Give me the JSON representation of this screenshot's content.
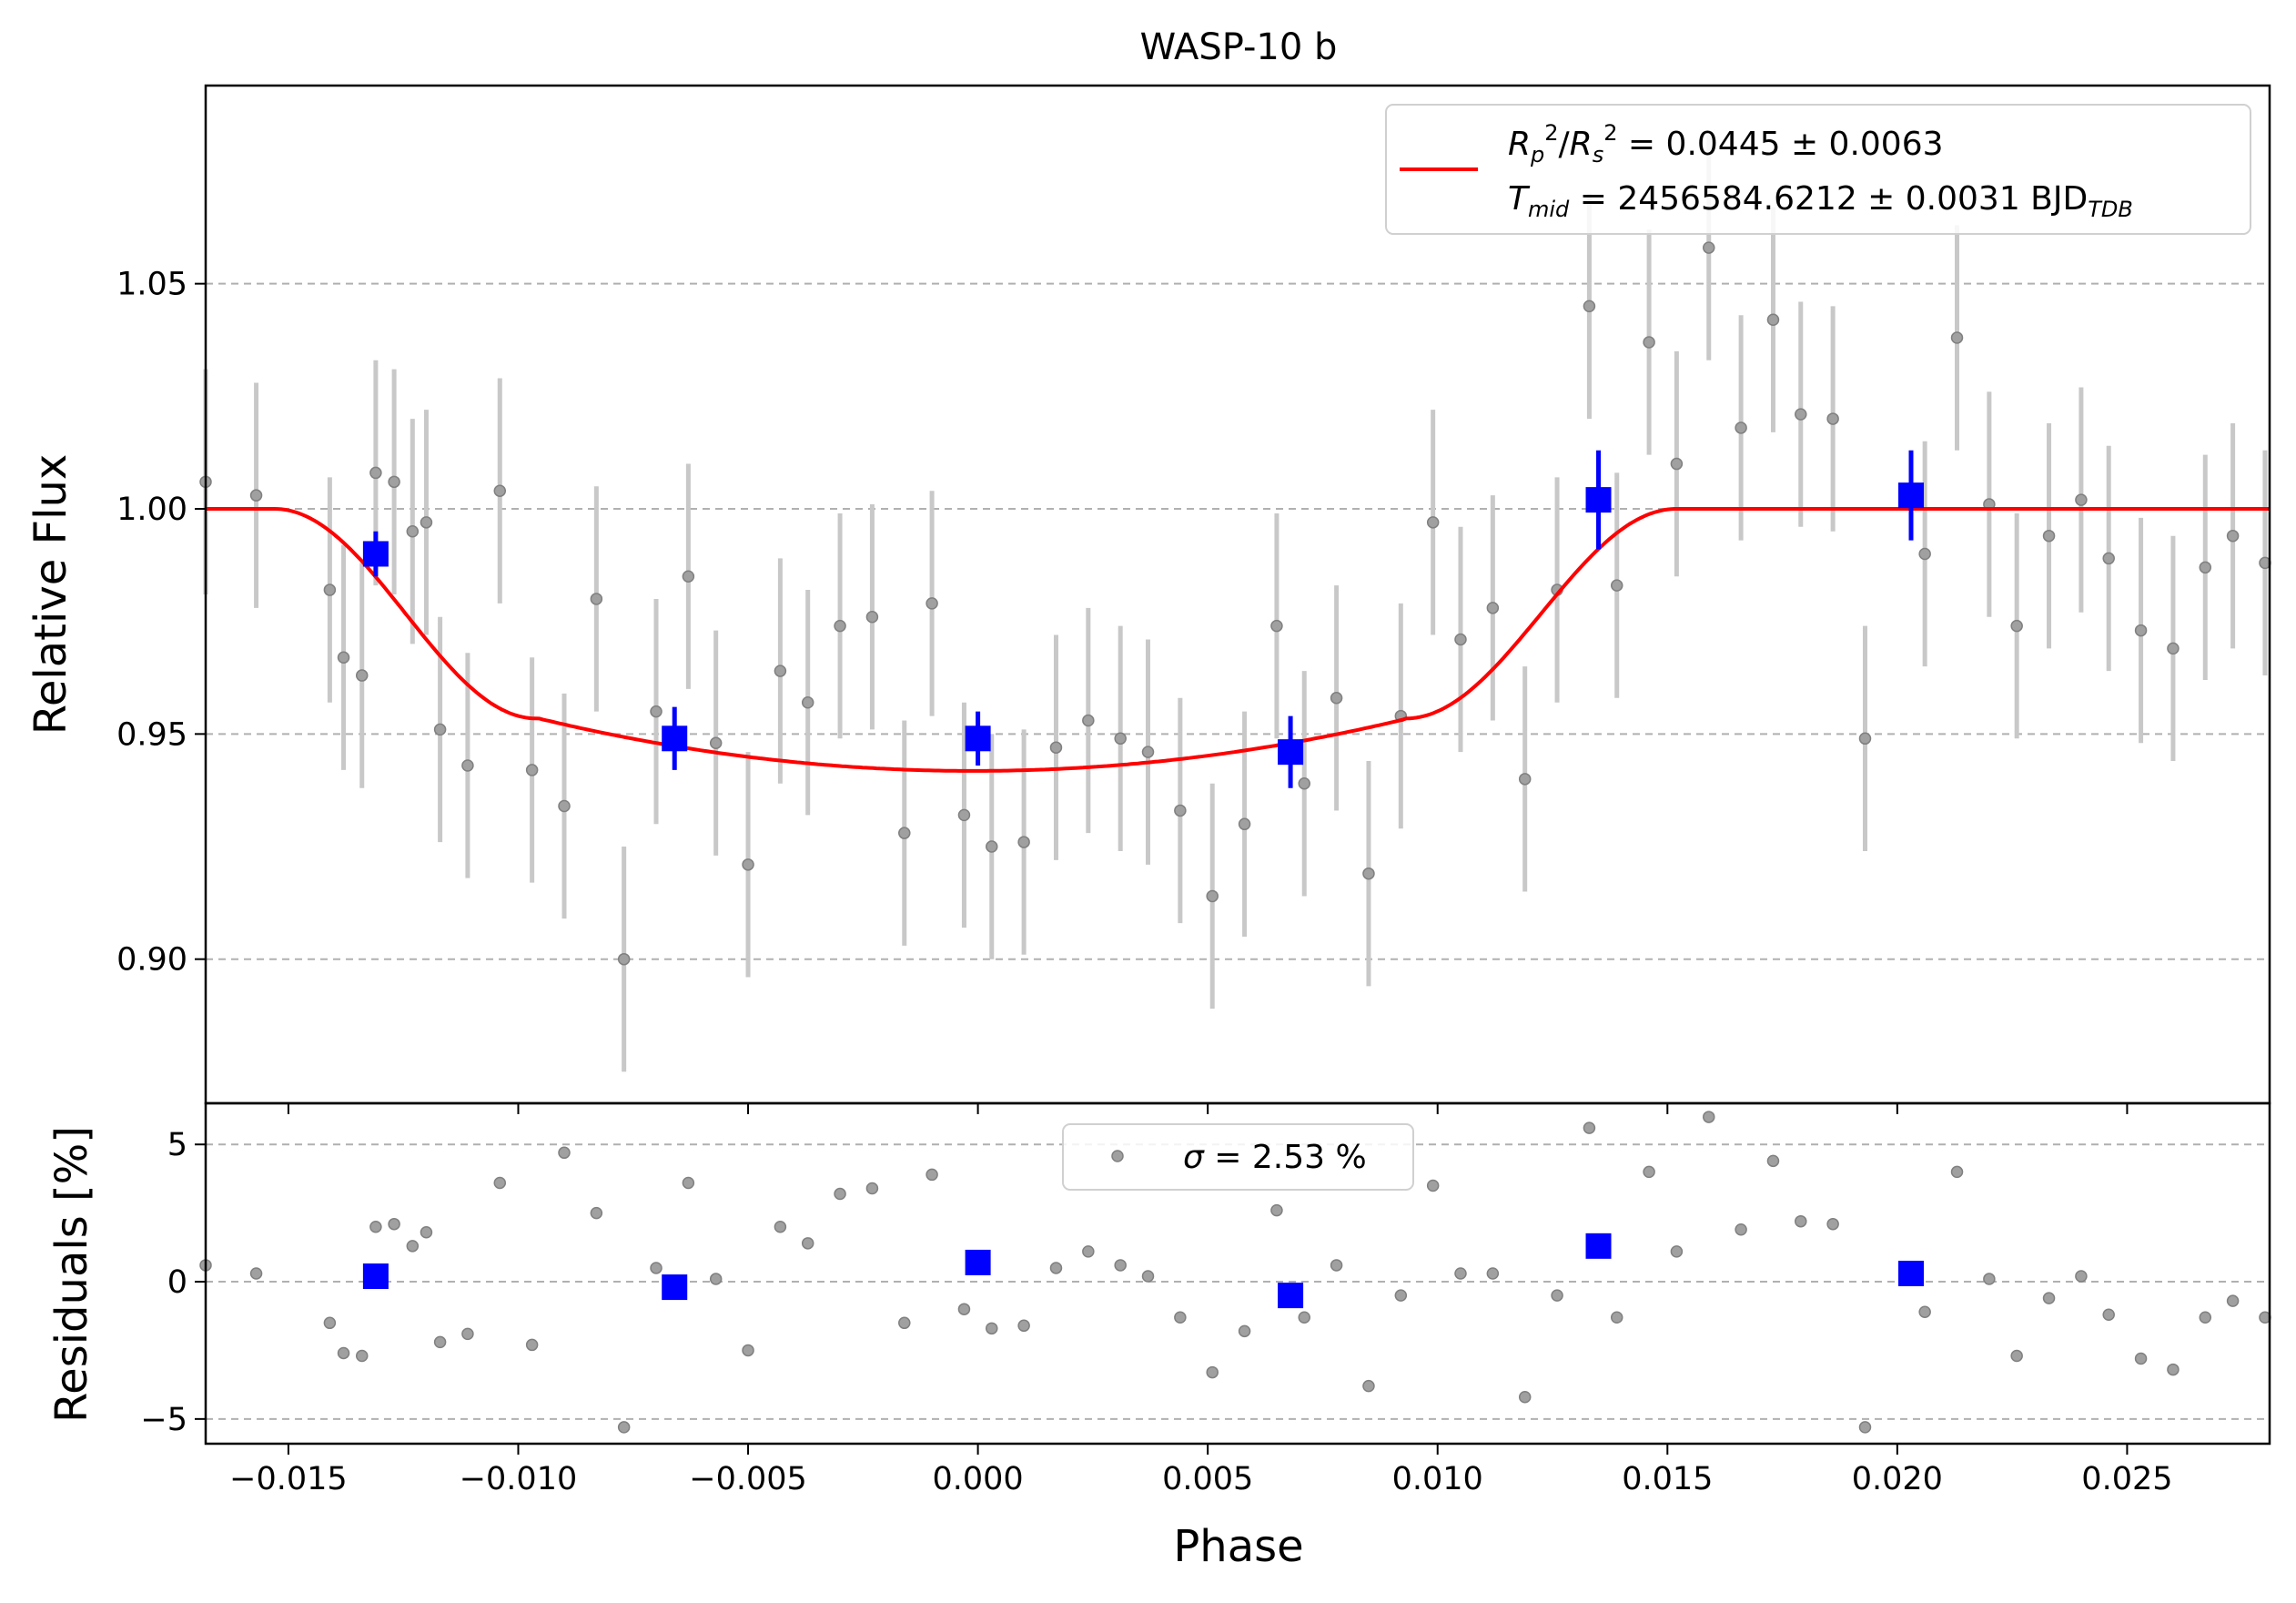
{
  "chart_data": [
    {
      "type": "scatter",
      "panel": "top",
      "title": "WASP-10 b",
      "xlabel": "Phase",
      "ylabel": "Relative Flux",
      "xlim": [
        -0.0168,
        0.0281
      ],
      "ylim": [
        0.868,
        1.094
      ],
      "x_ticks": [
        -0.015,
        -0.01,
        -0.005,
        0.0,
        0.005,
        0.01,
        0.015,
        0.02,
        0.025
      ],
      "x_tick_labels": [
        "−0.015",
        "−0.010",
        "−0.005",
        "0.000",
        "0.005",
        "0.010",
        "0.015",
        "0.020",
        "0.025"
      ],
      "y_ticks": [
        0.9,
        0.95,
        1.0,
        1.05
      ],
      "y_tick_labels": [
        "0.90",
        "0.95",
        "1.00",
        "1.05"
      ],
      "grid": "horizontal dashed",
      "legend": {
        "placement": "top-right",
        "line1": "R_p^2/R_s^2 = 0.0445 ± 0.0063",
        "line2": "T_mid = 2456584.6212 ± 0.0031 BJD_TDB"
      },
      "colors": {
        "data": "#808080",
        "errorbar": "#c8c8c8",
        "binned": "#0000ff",
        "model": "#ff0000"
      },
      "model": {
        "depth": 0.0582,
        "ingress_start": -0.0153,
        "ingress_end": -0.0096,
        "egress_start": 0.0093,
        "egress_end": 0.0152,
        "center": -0.0001
      },
      "raw_points": {
        "x": [
          -0.0168,
          -0.0157,
          -0.0141,
          -0.0138,
          -0.0134,
          -0.0131,
          -0.0127,
          -0.0123,
          -0.012,
          -0.0117,
          -0.0111,
          -0.0104,
          -0.0097,
          -0.009,
          -0.0083,
          -0.0077,
          -0.007,
          -0.0063,
          -0.0057,
          -0.005,
          -0.0043,
          -0.0037,
          -0.003,
          -0.0023,
          -0.0016,
          -0.001,
          -0.0003,
          0.0003,
          0.001,
          0.0017,
          0.0024,
          0.0031,
          0.0037,
          0.0044,
          0.0051,
          0.0058,
          0.0065,
          0.0071,
          0.0078,
          0.0085,
          0.0092,
          0.0099,
          0.0105,
          0.0112,
          0.0119,
          0.0126,
          0.0133,
          0.0139,
          0.0146,
          0.0152,
          0.0159,
          0.0166,
          0.0173,
          0.0179,
          0.0186,
          0.0193,
          0.0206,
          0.0213,
          0.022,
          0.0226,
          0.0233,
          0.024,
          0.0246,
          0.0253,
          0.026,
          0.0267,
          0.0273,
          0.028
        ],
        "y": [
          1.006,
          1.003,
          0.982,
          0.967,
          0.963,
          1.008,
          1.006,
          0.995,
          0.997,
          0.951,
          0.943,
          1.004,
          0.942,
          0.934,
          0.98,
          0.9,
          0.955,
          0.985,
          0.948,
          0.921,
          0.964,
          0.957,
          0.974,
          0.976,
          0.928,
          0.979,
          0.932,
          0.925,
          0.926,
          0.947,
          0.953,
          0.949,
          0.946,
          0.933,
          0.914,
          0.93,
          0.974,
          0.939,
          0.958,
          0.919,
          0.954,
          0.997,
          0.971,
          0.978,
          0.94,
          0.982,
          1.045,
          0.983,
          1.037,
          1.01,
          1.058,
          1.018,
          1.042,
          1.021,
          1.02,
          0.949,
          0.99,
          1.038,
          1.001,
          0.974,
          0.994,
          1.002,
          0.989,
          0.973,
          0.969,
          0.987,
          0.994,
          0.988
        ],
        "yerr": 0.025
      },
      "binned_points": {
        "x": [
          -0.0131,
          -0.0066,
          0.0,
          0.0068,
          0.0135,
          0.0203
        ],
        "y": [
          0.99,
          0.949,
          0.949,
          0.946,
          1.002,
          1.003
        ],
        "yerr": [
          0.005,
          0.007,
          0.006,
          0.008,
          0.011,
          0.01
        ]
      }
    },
    {
      "type": "scatter",
      "panel": "bottom",
      "xlabel": "Phase",
      "ylabel": "Residuals [%]",
      "xlim": [
        -0.0168,
        0.0281
      ],
      "ylim": [
        -5.9,
        6.5
      ],
      "y_ticks": [
        -5,
        0,
        5
      ],
      "y_tick_labels": [
        "−5",
        "0",
        "5"
      ],
      "grid": "horizontal dashed",
      "legend": {
        "placement": "top-center",
        "text": "σ = 2.53 %"
      },
      "raw_residuals": {
        "x": [
          -0.0168,
          -0.0157,
          -0.0141,
          -0.0138,
          -0.0134,
          -0.0131,
          -0.0127,
          -0.0123,
          -0.012,
          -0.0117,
          -0.0111,
          -0.0104,
          -0.0097,
          -0.009,
          -0.0083,
          -0.0077,
          -0.007,
          -0.0063,
          -0.0057,
          -0.005,
          -0.0043,
          -0.0037,
          -0.003,
          -0.0023,
          -0.0016,
          -0.001,
          -0.0003,
          0.0003,
          0.001,
          0.0017,
          0.0024,
          0.0031,
          0.0037,
          0.0044,
          0.0051,
          0.0058,
          0.0065,
          0.0071,
          0.0078,
          0.0085,
          0.0092,
          0.0099,
          0.0105,
          0.0112,
          0.0119,
          0.0126,
          0.0133,
          0.0139,
          0.0146,
          0.0152,
          0.0159,
          0.0166,
          0.0173,
          0.0179,
          0.0186,
          0.0193,
          0.0206,
          0.0213,
          0.022,
          0.0226,
          0.0233,
          0.024,
          0.0246,
          0.0253,
          0.026,
          0.0267,
          0.0273,
          0.028
        ],
        "y": [
          0.6,
          0.3,
          -1.5,
          -2.6,
          -2.7,
          2.0,
          2.1,
          1.3,
          1.8,
          -2.2,
          -1.9,
          3.6,
          -2.3,
          4.7,
          2.5,
          -5.3,
          0.5,
          3.6,
          0.1,
          -2.5,
          2.0,
          1.4,
          3.2,
          3.4,
          -1.5,
          3.9,
          -1.0,
          -1.7,
          -1.6,
          0.5,
          1.1,
          0.6,
          0.2,
          -1.3,
          -3.3,
          -1.8,
          2.6,
          -1.3,
          0.6,
          -3.8,
          -0.5,
          3.5,
          0.3,
          0.3,
          -4.2,
          -0.5,
          5.6,
          -1.3,
          4.0,
          1.1,
          6.0,
          1.9,
          4.4,
          2.2,
          2.1,
          -5.3,
          -1.1,
          4.0,
          0.1,
          -2.7,
          -0.6,
          0.2,
          -1.2,
          -2.8,
          -3.2,
          -1.3,
          -0.7,
          -1.3
        ]
      },
      "binned_residuals": {
        "x": [
          -0.0131,
          -0.0066,
          0.0,
          0.0068,
          0.0135,
          0.0203
        ],
        "y": [
          0.2,
          -0.2,
          0.7,
          -0.5,
          1.3,
          0.3
        ]
      }
    }
  ]
}
